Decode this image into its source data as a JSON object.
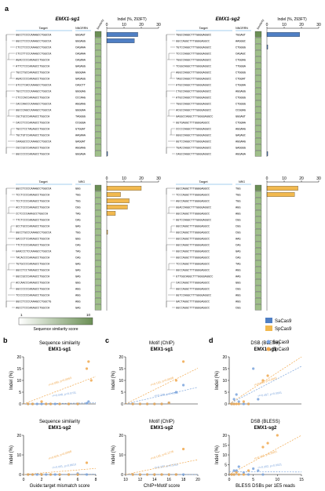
{
  "panel_a": {
    "letter": "a",
    "sg1_title": "EMX1-sg1",
    "sg2_title": "EMX1-sg2",
    "target_header": "Target",
    "pam_header_top": "NNGRRN",
    "pam_header_bottom": "NRG",
    "similarity_header": "Similarity",
    "indel_header": "Indel (%, 293FT)",
    "indel_ticks": [
      "0",
      "10",
      "20",
      "30"
    ],
    "rows": 20,
    "sg1_top": {
      "targets": [
        "GGCCTCCCCAAAGCCTGGCCA",
        "GGCCTCCCCAAAGCCTGGCCA",
        "CTCCTCCCCAAAGCCTGGCCA",
        "CTCCTTCCCAAAGCCTGGCCA",
        "AGACCCCCAAAGCCTGGCCA",
        "ATTCTCCCAAAGCCTGGCCA",
        "TGCCTGCCAAAGCCTGGCCA",
        "AGACCCCCAAAGCCTGGCCA",
        "GTCCTCACCAAAGCCTGGCCA",
        "TGCCTCCCCAAAGCCTGGCCA",
        "CTCCCACCAAAGCCTGGCCA",
        "CACCAACCCAAAGCCTGGCCA",
        "GGCCCAGCCAAAGCCTGGCCA",
        "CGCTGCCCAAAGCCTGGCCA",
        "CACCTCCCAAAGCCTGGCCA",
        "TGCCTCCTAGAGCCTGGCCA",
        "TGCTGTCCAAAGCCTGGCCA",
        "CAAGGCCCCAAAGCCTGGCCA",
        "CGCCGCCCAAAGCCTGGCCA",
        "GGCCCCCCAAAGCCTGGCCA"
      ],
      "pams": [
        "GGGAGT",
        "GGGAGG",
        "CAGAAA",
        "CAGAAA",
        "CAGAAA",
        "GAGAGG",
        "GGGGAA",
        "GAGAGG",
        "CAGCTT",
        "GGGGAG",
        "CCCAAG",
        "AGGAAG",
        "GGGGAA",
        "TAGGGG",
        "CCGGGA",
        "GTGGAT",
        "AAGAAA",
        "GAGGAT",
        "AGGAAG",
        "GGGAGA"
      ],
      "indel": [
        18,
        16,
        0,
        0,
        0,
        0,
        0,
        0,
        0,
        0,
        0,
        0,
        0,
        0,
        0,
        0,
        0,
        0,
        0,
        0.5
      ]
    },
    "sg2_top": {
      "targets": [
        "TGGCCAGGCTTTGGGGAGGCC",
        "GGCCAGGCTTTGGGGAGGCC",
        "TGTCCAGGCTTTGGGGAGGCC",
        "TCCCCAGGCTTTGGGGAGGCC",
        "TGGCCAGGCTTTGGGGAGGCC",
        "TCGGCAGGCTTTGGGGAGGCC",
        "AGGCCAGGCTTTGGGGAGGCC",
        "TAGCCAGGCTTTGGGGAGGCC",
        "ATGCCAGGCTTTGGGGAGGCC",
        "CTGCCAGGCTTTGGGGAGGCC",
        "ATGCCAGGCTTTGGGGAGGCC",
        "TGGCCAGGCTTTGGGGAGGCC",
        "ACGCCAGGCTTTGGGGAGGCC",
        "GAGGCCAGGCTTTGGGGAGGCC",
        "GGTGAGGCTTTGGGGAGGCC",
        "CCCCCAGGCTTTGGGGAGGCC",
        "GGGCCAGGCTTTGGGGAGGCC",
        "GGTCCAGGCTTTGGGGAGGCC",
        "TGACCAGGCTTTGGGGAGGCC",
        "CAGCCAGGCTTTGGGGAGGCC"
      ],
      "pams": [
        "TGGAGT",
        "AAGGGC",
        "CTGGGG",
        "CAGAGC",
        "CTGGAG",
        "TTGGGA",
        "CTGGGG",
        "CTGGAT",
        "CTGGAA",
        "AGGAGG",
        "CTGGGG",
        "CTGGGG",
        "CCGGAG",
        "GGGAGT",
        "CTGGAA",
        "AGGAAG",
        "GAGAGC",
        "AGGAAG",
        "GAGGGG",
        "AGGAGA"
      ],
      "indel": [
        19,
        0,
        0.5,
        0,
        0,
        0,
        0,
        0,
        0,
        0,
        0,
        0,
        0,
        0,
        0,
        0,
        0,
        0,
        0,
        0.5
      ]
    },
    "sg1_bottom": {
      "targets": [
        "GGCCTCCCCAAAGCCTGGCCA",
        "TCCTCCCCAAAGCCTGGCCA",
        "TCCTCCCCAAAGCCTGGCCA",
        "ACCTCCCCAAAGCCTGGCCA",
        "CCTCCCCAAAGCCTGGCCA",
        "TTCTCCCCAAAGCCTGGCCA",
        "GCCTGCCCAAAGCCTGGCCA",
        "GGCCTGCCCAAAGCCTGGCCA",
        "GACCCTCCAAAGCCTGGCCA",
        "TTCTCCCCAAAGCCTGGCCA",
        "GAACCCTCCAAAGCCTGGCCA",
        "TACACCCCAAAGCCTGGCCA",
        "TGTGCCCCAAAGCCTGGCCA",
        "GGCCTCCTAAAGCCTGGCCA",
        "GGCCGCCCAAAGCCTGGCCA",
        "ACCAACCCAAAGCCTGGCCA",
        "GGCCCCCCAAAGCCTGGCCA",
        "TCCCCCCCAAAGCCTGGCCA",
        "GGCCTCCCCAAAGCCTGGCTG",
        "AGCCTCCCAAAGCCTGGCCA"
      ],
      "pams": [
        "GGG",
        "TGG",
        "TGG",
        "CGG",
        "TAG",
        "CAG",
        "GAG",
        "TGG",
        "GGG",
        "CAG",
        "TAG",
        "CAG",
        "GAG",
        "GAG",
        "GAG",
        "GGG",
        "AGG",
        "AGG",
        "AGG",
        "GAG"
      ],
      "indel": [
        20,
        8,
        13,
        12,
        5,
        0,
        0,
        0.5,
        0,
        0,
        0,
        0,
        0,
        0,
        0,
        0,
        0,
        0,
        0,
        0
      ]
    },
    "sg2_bottom": {
      "targets": [
        "GGCCAGGCTTTGGGGAGGCC",
        "TCCCAGGCTTTGGGGAGGCC",
        "AGCCAGGCTTTGGGGAGGCC",
        "GGACCAGGCTTTGGGGAGGCC",
        "GGCCAGGCTTTGGGGAGGCC",
        "GGTCCAGGCTTTGGGGAGGCC",
        "GGCCAGGCTTTGGGGAGGCC",
        "GGCCAGGCTTTGGGGAGGCC",
        "GGCCAGGCTTTGGGGAGGCC",
        "GGCCAGGCTTTGGGGAGGCC",
        "GGCCAGGCTTTGGGGAGGCC",
        "GGCCAGGCTTTGGGGAGGCC",
        "TCCCAGGCTTTGGGGAGGCC",
        "GGCCAGGCTTTGGGGAGGCC",
        "GTTGGCAGGCTTTGGGGAGGCC",
        "CACCAGGCTTTGGGGAGGCC",
        "GGCCAGGCTTTGGGGAGGCC",
        "GGTCCAGGCTTTGGGGAGGCC",
        "GACTAGGCTTTGGGGAGGCC",
        "GGCCAGGCTTTGGGGAGGCC"
      ],
      "pams": [
        "TGG",
        "TGG",
        "TGG",
        "AGG",
        "AGG",
        "CGG",
        "CGG",
        "CGG",
        "AAG",
        "CAG",
        "GAG",
        "CAG",
        "TAG",
        "AGG",
        "AAG",
        "GGG",
        "CGG",
        "AGG",
        "AGG",
        "CGG"
      ],
      "indel": [
        18,
        16,
        0,
        0,
        0,
        0,
        0,
        0,
        0,
        0,
        0,
        0,
        0,
        0,
        0,
        0,
        0,
        0,
        0,
        0
      ]
    },
    "similarity_scale": {
      "min": "1",
      "max": "10",
      "label": "Sequence similarity score"
    },
    "legend": [
      {
        "name": "SaCas9",
        "color": "#4f7fc4"
      },
      {
        "name": "SpCas9",
        "color": "#f2b94f"
      }
    ]
  },
  "colors": {
    "sa": "#4f7fc4",
    "sp": "#f2b94f",
    "mismatch": "#cc2020",
    "sim": "#9fbf8a",
    "simDark": "#6b8f55"
  },
  "scatter_legend": [
    {
      "name": "SaCas9",
      "color": "#7aa3dc"
    },
    {
      "name": "SpCas9",
      "color": "#f0a84e"
    }
  ],
  "panels": [
    {
      "letter": "b",
      "title1": "Sequence similarity",
      "title2": "EMX1-sg1",
      "ylabel": "Indel (%)",
      "xlabel": "",
      "yticks": [
        "0",
        "5",
        "10",
        "15",
        "20"
      ],
      "xticks": [],
      "sa_ann": "r²=0.048, p=0.0731",
      "sp_ann": "r²=0.059, p=0.0063",
      "sa": [
        [
          0.5,
          0
        ],
        [
          1,
          0
        ],
        [
          1.5,
          0
        ],
        [
          2,
          0
        ],
        [
          2.5,
          0
        ],
        [
          3,
          0
        ],
        [
          3.5,
          0
        ],
        [
          4,
          0
        ],
        [
          5,
          0
        ],
        [
          6,
          0
        ],
        [
          7,
          0.3
        ],
        [
          7.2,
          1
        ]
      ],
      "sp": [
        [
          0.5,
          0
        ],
        [
          1,
          0
        ],
        [
          2,
          1
        ],
        [
          2.5,
          0
        ],
        [
          3,
          0
        ],
        [
          4,
          0
        ],
        [
          5,
          0
        ],
        [
          6,
          0
        ],
        [
          7,
          15
        ],
        [
          7.2,
          18
        ],
        [
          7.5,
          10
        ]
      ]
    },
    {
      "letter": "",
      "title1": "Sequence similarity",
      "title2": "EMX1-sg2",
      "ylabel": "Indel (%)",
      "xlabel": "Guide:target mismatch score",
      "yticks": [
        "0",
        "10",
        "20"
      ],
      "xticks": [
        "0",
        "2",
        "4",
        "6",
        "8"
      ],
      "sa_ann": "r²=0.001, p=0.8610",
      "sp_ann": "r²=0.924, p=0.0068",
      "sa": [
        [
          0.5,
          0
        ],
        [
          1,
          0
        ],
        [
          1.5,
          0
        ],
        [
          2,
          0
        ],
        [
          2.5,
          0
        ],
        [
          3,
          0
        ],
        [
          3.5,
          0
        ],
        [
          4,
          0
        ],
        [
          5,
          0
        ],
        [
          6,
          0.5
        ],
        [
          7,
          0
        ]
      ],
      "sp": [
        [
          0.5,
          0
        ],
        [
          1,
          0
        ],
        [
          2,
          0
        ],
        [
          3,
          0
        ],
        [
          4,
          0
        ],
        [
          5,
          0
        ],
        [
          6,
          0
        ],
        [
          7,
          6
        ]
      ]
    },
    {
      "letter": "c",
      "title1": "Motif (ChIP)",
      "title2": "EMX1-sg1",
      "ylabel": "Indel (%)",
      "xlabel": "",
      "yticks": [
        "0",
        "5",
        "10",
        "15",
        "20"
      ],
      "xticks": [],
      "sa_ann": "r²=0.298, p=0.0095",
      "sp_ann": "r²=0.143, p=0.0008",
      "sa": [
        [
          11,
          0
        ],
        [
          12,
          0
        ],
        [
          13,
          0
        ],
        [
          14,
          0
        ],
        [
          15,
          0
        ],
        [
          16,
          0.5
        ],
        [
          17,
          5
        ],
        [
          18,
          8
        ]
      ],
      "sp": [
        [
          11,
          0
        ],
        [
          12,
          0
        ],
        [
          13,
          0
        ],
        [
          14,
          0
        ],
        [
          15,
          0
        ],
        [
          16,
          0.5
        ],
        [
          17,
          10
        ],
        [
          18,
          18
        ]
      ]
    },
    {
      "letter": "",
      "title1": "Motif (ChIP)",
      "title2": "EMX1-sg2",
      "ylabel": "Indel (%)",
      "xlabel": "ChIP+Motif score",
      "yticks": [
        "0",
        "10",
        "20"
      ],
      "xticks": [
        "10",
        "12",
        "14",
        "16",
        "18",
        "20"
      ],
      "sa_ann": "r²=0.157, p=0.1153",
      "sp_ann": "r²=0.145, p=0.1276",
      "sa": [
        [
          11,
          0
        ],
        [
          12,
          0
        ],
        [
          13,
          0
        ],
        [
          14,
          0
        ],
        [
          15,
          0
        ],
        [
          16,
          0
        ],
        [
          17,
          0
        ],
        [
          18,
          0
        ]
      ],
      "sp": [
        [
          11,
          0
        ],
        [
          12,
          0
        ],
        [
          13,
          0
        ],
        [
          14,
          0
        ],
        [
          15,
          0
        ],
        [
          16,
          0
        ],
        [
          17,
          0
        ],
        [
          18,
          13
        ]
      ]
    },
    {
      "letter": "d",
      "title1": "DSB (BLESS)",
      "title2": "EMX1-sg1",
      "ylabel": "Indel (%)",
      "xlabel": "",
      "yticks": [
        "0",
        "5",
        "10",
        "15",
        "20"
      ],
      "xticks": [],
      "sa_ann": "r²=0.457, p=0.0001",
      "sp_ann": "r²=0.668, p=0.0001",
      "sa": [
        [
          0.5,
          0
        ],
        [
          1,
          0
        ],
        [
          1,
          2
        ],
        [
          1.5,
          4
        ],
        [
          2,
          1
        ],
        [
          3,
          0
        ],
        [
          4,
          0
        ],
        [
          5,
          15
        ],
        [
          6,
          2
        ]
      ],
      "sp": [
        [
          0.5,
          0
        ],
        [
          1,
          0
        ],
        [
          1.5,
          0
        ],
        [
          2,
          0
        ],
        [
          3,
          1
        ],
        [
          4,
          0
        ],
        [
          7,
          10
        ],
        [
          8,
          12
        ]
      ]
    },
    {
      "letter": "",
      "title1": "DSB (BLESS)",
      "title2": "EMX1-sg2",
      "ylabel": "Indel (%)",
      "xlabel": "BLESS DSBs per 1E5 reads",
      "yticks": [
        "0",
        "5",
        "10",
        "15",
        "20"
      ],
      "xticks": [
        "0",
        "5",
        "10",
        "15"
      ],
      "sa_ann": "r²=0.302, p=0.0021",
      "sp_ann": "r²=0.762, p=0.0001",
      "sa": [
        [
          0.5,
          0
        ],
        [
          1,
          0
        ],
        [
          1,
          2
        ],
        [
          1.5,
          2
        ],
        [
          2,
          4
        ],
        [
          3,
          1
        ],
        [
          4,
          0
        ],
        [
          5,
          3
        ],
        [
          6,
          2
        ],
        [
          7,
          0
        ]
      ],
      "sp": [
        [
          0.5,
          0
        ],
        [
          1,
          0
        ],
        [
          1.5,
          1
        ],
        [
          2,
          0
        ],
        [
          3,
          0
        ],
        [
          4,
          2
        ],
        [
          7,
          14
        ],
        [
          8,
          16
        ],
        [
          10,
          20
        ]
      ]
    }
  ]
}
